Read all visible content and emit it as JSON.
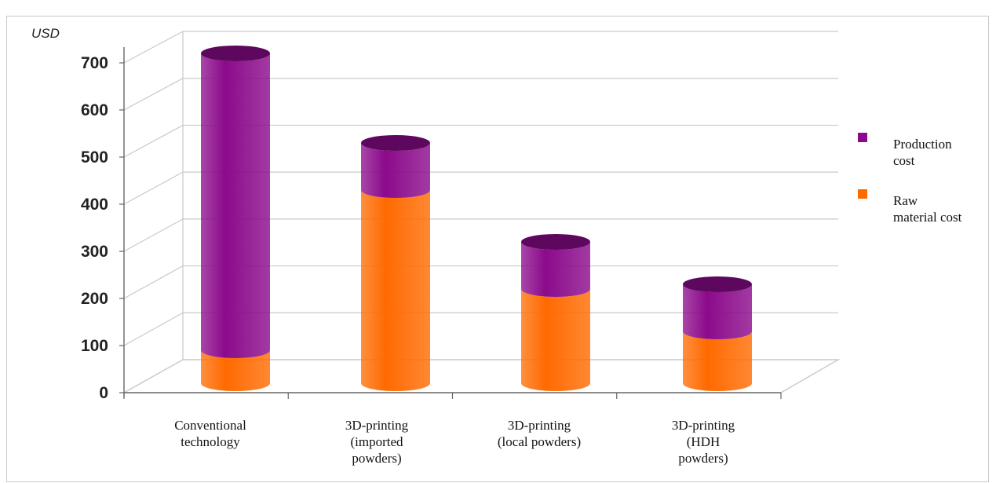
{
  "chart_data": {
    "type": "bar",
    "stacked": true,
    "three_d": true,
    "ylabel": "USD",
    "ylim": [
      0,
      700
    ],
    "yticks": [
      0,
      100,
      200,
      300,
      400,
      500,
      600,
      700
    ],
    "grid": true,
    "legend_position": "right",
    "categories": [
      [
        "Conventional",
        "technology"
      ],
      [
        "3D-printing",
        "(imported",
        "powders)"
      ],
      [
        "3D-printing",
        "(local powders)"
      ],
      [
        "3D-printing",
        "(HDH",
        "powders)"
      ]
    ],
    "series": [
      {
        "name": [
          "Raw",
          "material cost"
        ],
        "values": [
          70,
          410,
          200,
          110
        ],
        "color": "#ff6a00"
      },
      {
        "name": [
          "Production",
          "cost"
        ],
        "values": [
          630,
          100,
          100,
          100
        ],
        "color": "#8b0a8b"
      }
    ]
  }
}
